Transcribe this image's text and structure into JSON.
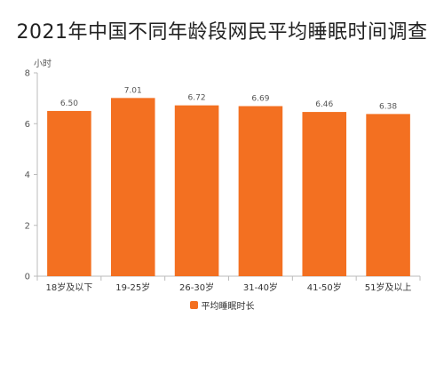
{
  "chart_data": {
    "type": "bar",
    "title": "2021年中国不同年龄段网民平均睡眠时间调查",
    "ylabel": "小时",
    "xlabel": "",
    "ylim": [
      0,
      8
    ],
    "yticks": [
      0,
      2,
      4,
      6,
      8
    ],
    "categories": [
      "18岁及以下",
      "19-25岁",
      "26-30岁",
      "31-40岁",
      "41-50岁",
      "51岁及以上"
    ],
    "series": [
      {
        "name": "平均睡眠时长",
        "values": [
          6.5,
          7.01,
          6.72,
          6.69,
          6.46,
          6.38
        ],
        "labels": [
          "6.50",
          "7.01",
          "6.72",
          "6.69",
          "6.46",
          "6.38"
        ]
      }
    ],
    "color": "#F37021",
    "grid": false,
    "legend_position": "bottom"
  }
}
